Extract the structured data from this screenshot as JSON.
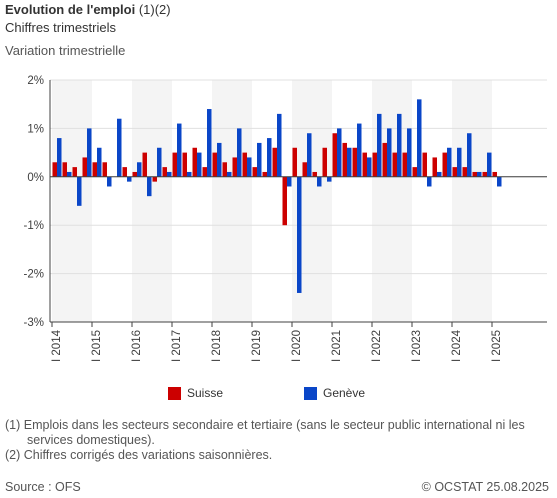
{
  "header": {
    "title": "Evolution de l'emploi",
    "title_notes": "(1)(2)",
    "subtitle": "Chiffres trimestriels",
    "ylabel": "Variation trimestrielle"
  },
  "colors": {
    "suisse": "#cc0000",
    "geneve": "#0a46c8",
    "band": "#f4f4f4",
    "grid": "#e0e0e0",
    "axis": "#404040"
  },
  "legend": [
    {
      "key": "suisse",
      "label": "Suisse"
    },
    {
      "key": "geneve",
      "label": "Genève"
    }
  ],
  "notes": [
    "(1) Emplois dans les secteurs secondaire et tertiaire (sans le secteur public international ni les services domestiques).",
    "(2) Chiffres corrigés des variations saisonnières."
  ],
  "footer": {
    "source": "Source : OFS",
    "copyright": "© OCSTAT 25.08.2025"
  },
  "chart_data": {
    "type": "bar",
    "ylim": [
      -3,
      2
    ],
    "yticks": [
      2,
      1,
      0,
      -1,
      -2,
      -3
    ],
    "ytick_labels": [
      "2%",
      "1%",
      "0%",
      "-1%",
      "-2%",
      "-3%"
    ],
    "year_labels": [
      "I 2014",
      "I 2015",
      "I 2016",
      "I 2017",
      "I 2018",
      "I 2019",
      "I 2020",
      "I 2021",
      "I 2022",
      "I 2023",
      "I 2024",
      "I 2025"
    ],
    "categories": [
      "2014 T1",
      "2014 T2",
      "2014 T3",
      "2014 T4",
      "2015 T1",
      "2015 T2",
      "2015 T3",
      "2015 T4",
      "2016 T1",
      "2016 T2",
      "2016 T3",
      "2016 T4",
      "2017 T1",
      "2017 T2",
      "2017 T3",
      "2017 T4",
      "2018 T1",
      "2018 T2",
      "2018 T3",
      "2018 T4",
      "2019 T1",
      "2019 T2",
      "2019 T3",
      "2019 T4",
      "2020 T1",
      "2020 T2",
      "2020 T3",
      "2020 T4",
      "2021 T1",
      "2021 T2",
      "2021 T3",
      "2021 T4",
      "2022 T1",
      "2022 T2",
      "2022 T3",
      "2022 T4",
      "2023 T1",
      "2023 T2",
      "2023 T3",
      "2023 T4",
      "2024 T1",
      "2024 T2",
      "2024 T3",
      "2024 T4",
      "2025 T1",
      "2025 T2"
    ],
    "series": [
      {
        "name": "Suisse",
        "values": [
          0.3,
          0.3,
          0.2,
          0.4,
          0.3,
          0.3,
          0.0,
          0.2,
          0.1,
          0.5,
          -0.1,
          0.2,
          0.5,
          0.5,
          0.6,
          0.2,
          0.5,
          0.3,
          0.4,
          0.5,
          0.2,
          0.1,
          0.6,
          -1.0,
          0.6,
          0.3,
          0.1,
          0.6,
          0.9,
          0.7,
          0.6,
          0.5,
          0.5,
          0.7,
          0.5,
          0.5,
          0.2,
          0.5,
          0.4,
          0.5,
          0.2,
          0.2,
          0.1,
          0.1,
          0.1,
          0.0
        ]
      },
      {
        "name": "Genève",
        "values": [
          0.8,
          0.1,
          -0.6,
          1.0,
          0.6,
          -0.2,
          1.2,
          -0.1,
          0.3,
          -0.4,
          0.6,
          0.1,
          1.1,
          0.1,
          0.5,
          1.4,
          0.7,
          0.1,
          1.0,
          0.4,
          0.7,
          0.8,
          1.3,
          -0.2,
          -2.4,
          0.9,
          -0.2,
          -0.1,
          1.0,
          0.6,
          1.1,
          0.4,
          1.3,
          1.0,
          1.3,
          1.0,
          1.6,
          -0.2,
          0.1,
          0.6,
          0.6,
          0.9,
          0.1,
          0.5,
          -0.2,
          0.0
        ]
      }
    ],
    "grid": true,
    "legend_position": "bottom"
  }
}
